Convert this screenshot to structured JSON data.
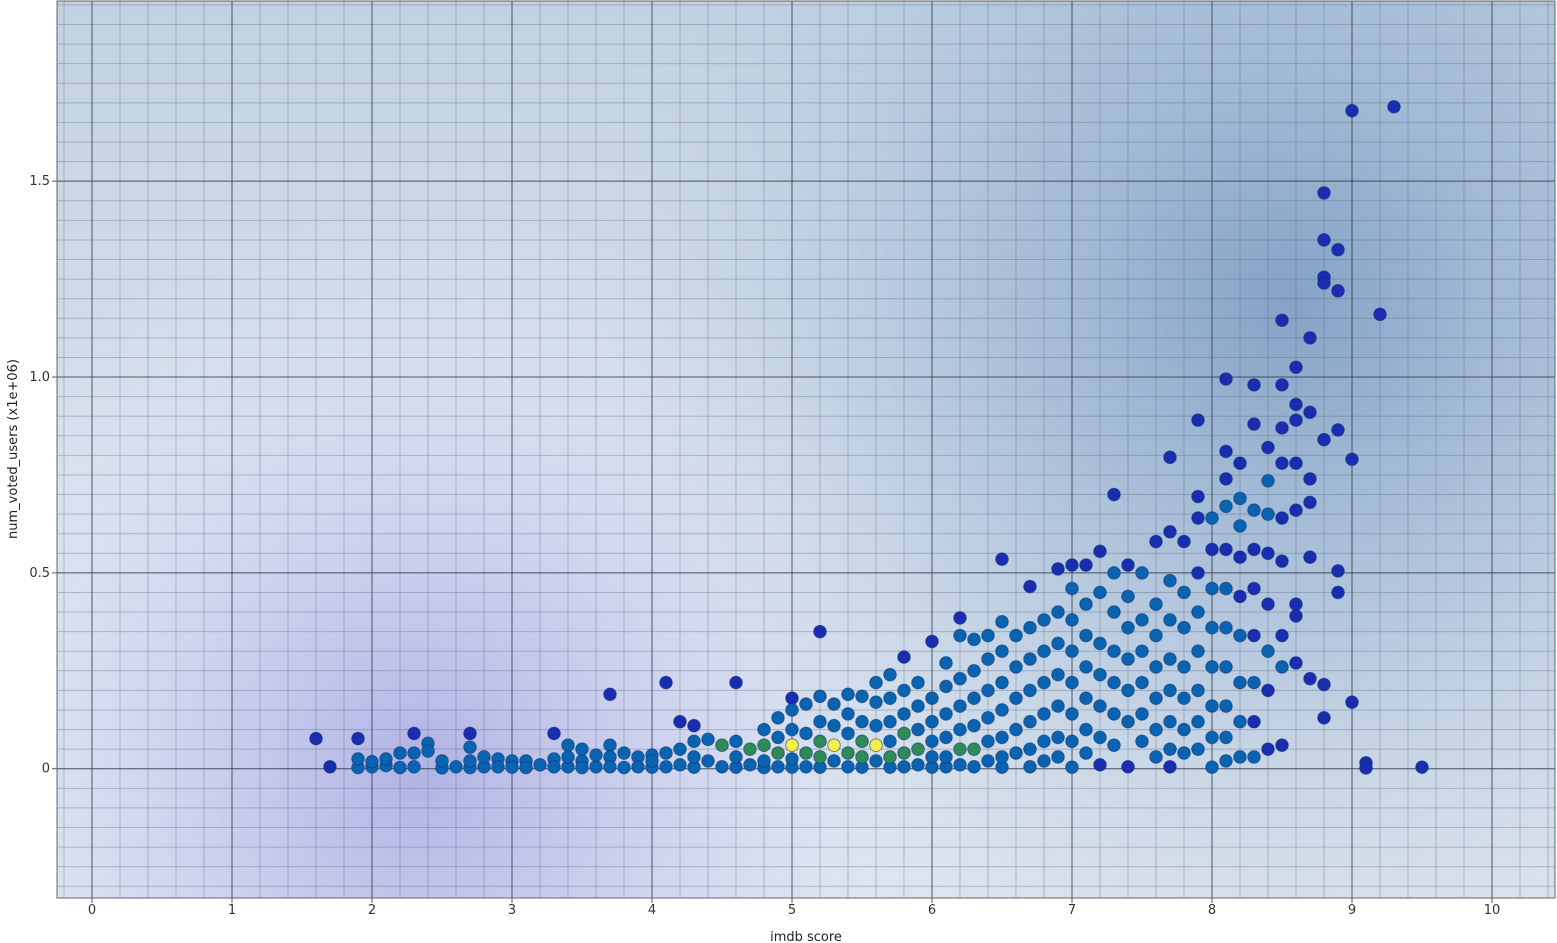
{
  "chart_data": {
    "type": "scatter",
    "title": "",
    "xlabel": "imdb score",
    "ylabel": "num_voted_users (x1e+06)",
    "xlim": [
      -0.25,
      10.45
    ],
    "ylim": [
      -0.33,
      1.96
    ],
    "x_ticks": [
      0,
      1,
      2,
      3,
      4,
      5,
      6,
      7,
      8,
      9,
      10
    ],
    "y_ticks": [
      0,
      0.5,
      1.0,
      1.5
    ],
    "x_tick_labels": [
      "0",
      "1",
      "2",
      "3",
      "4",
      "5",
      "6",
      "7",
      "8",
      "9",
      "10"
    ],
    "y_tick_labels": [
      "0",
      "0.5",
      "1.0",
      "1.5"
    ],
    "grid": true,
    "legend": "none",
    "colors": {
      "plot_background": "#c4d4e4",
      "density_high": "#8aa8c8",
      "density_low": "#b4b4e6",
      "point_low_density": "#1a2db0",
      "point_mid_density": "#0a63b0",
      "point_high_density": "#2e8a57",
      "point_peak_density": "#f4f04a"
    },
    "points": [
      [
        1.6,
        0.077
      ],
      [
        1.7,
        0.005
      ],
      [
        1.9,
        0.077
      ],
      [
        1.9,
        0.025
      ],
      [
        1.9,
        0.003
      ],
      [
        2.0,
        0.018
      ],
      [
        2.0,
        0.005
      ],
      [
        2.1,
        0.025
      ],
      [
        2.1,
        0.008
      ],
      [
        2.2,
        0.04
      ],
      [
        2.2,
        0.003
      ],
      [
        2.3,
        0.09
      ],
      [
        2.3,
        0.04
      ],
      [
        2.3,
        0.005
      ],
      [
        2.4,
        0.065
      ],
      [
        2.4,
        0.045
      ],
      [
        2.5,
        0.02
      ],
      [
        2.5,
        0.002
      ],
      [
        2.6,
        0.005
      ],
      [
        2.7,
        0.09
      ],
      [
        2.7,
        0.055
      ],
      [
        2.7,
        0.02
      ],
      [
        2.7,
        0.003
      ],
      [
        2.8,
        0.03
      ],
      [
        2.8,
        0.005
      ],
      [
        2.9,
        0.025
      ],
      [
        2.9,
        0.005
      ],
      [
        3.0,
        0.02
      ],
      [
        3.0,
        0.004
      ],
      [
        3.1,
        0.02
      ],
      [
        3.1,
        0.003
      ],
      [
        3.2,
        0.01
      ],
      [
        3.3,
        0.09
      ],
      [
        3.3,
        0.025
      ],
      [
        3.3,
        0.005
      ],
      [
        3.4,
        0.06
      ],
      [
        3.4,
        0.03
      ],
      [
        3.4,
        0.005
      ],
      [
        3.5,
        0.05
      ],
      [
        3.5,
        0.02
      ],
      [
        3.5,
        0.003
      ],
      [
        3.6,
        0.035
      ],
      [
        3.6,
        0.005
      ],
      [
        3.7,
        0.19
      ],
      [
        3.7,
        0.06
      ],
      [
        3.7,
        0.03
      ],
      [
        3.7,
        0.005
      ],
      [
        3.8,
        0.04
      ],
      [
        3.8,
        0.003
      ],
      [
        3.9,
        0.03
      ],
      [
        3.9,
        0.005
      ],
      [
        4.0,
        0.035
      ],
      [
        4.0,
        0.02
      ],
      [
        4.0,
        0.004
      ],
      [
        4.1,
        0.22
      ],
      [
        4.1,
        0.04
      ],
      [
        4.1,
        0.005
      ],
      [
        4.2,
        0.12
      ],
      [
        4.2,
        0.05
      ],
      [
        4.2,
        0.01
      ],
      [
        4.3,
        0.11
      ],
      [
        4.3,
        0.07
      ],
      [
        4.3,
        0.03
      ],
      [
        4.3,
        0.004
      ],
      [
        4.4,
        0.075
      ],
      [
        4.4,
        0.02
      ],
      [
        4.5,
        0.06
      ],
      [
        4.5,
        0.005
      ],
      [
        4.6,
        0.22
      ],
      [
        4.6,
        0.07
      ],
      [
        4.6,
        0.03
      ],
      [
        4.6,
        0.004
      ],
      [
        4.7,
        0.05
      ],
      [
        4.7,
        0.01
      ],
      [
        4.8,
        0.1
      ],
      [
        4.8,
        0.06
      ],
      [
        4.8,
        0.02
      ],
      [
        4.8,
        0.003
      ],
      [
        4.9,
        0.13
      ],
      [
        4.9,
        0.08
      ],
      [
        4.9,
        0.04
      ],
      [
        4.9,
        0.005
      ],
      [
        5.0,
        0.18
      ],
      [
        5.0,
        0.15
      ],
      [
        5.0,
        0.1
      ],
      [
        5.0,
        0.06
      ],
      [
        5.0,
        0.025
      ],
      [
        5.0,
        0.004
      ],
      [
        5.1,
        0.165
      ],
      [
        5.1,
        0.09
      ],
      [
        5.1,
        0.04
      ],
      [
        5.1,
        0.005
      ],
      [
        5.2,
        0.35
      ],
      [
        5.2,
        0.185
      ],
      [
        5.2,
        0.12
      ],
      [
        5.2,
        0.07
      ],
      [
        5.2,
        0.03
      ],
      [
        5.2,
        0.004
      ],
      [
        5.3,
        0.165
      ],
      [
        5.3,
        0.11
      ],
      [
        5.3,
        0.06
      ],
      [
        5.3,
        0.02
      ],
      [
        5.4,
        0.19
      ],
      [
        5.4,
        0.14
      ],
      [
        5.4,
        0.09
      ],
      [
        5.4,
        0.04
      ],
      [
        5.4,
        0.005
      ],
      [
        5.5,
        0.185
      ],
      [
        5.5,
        0.12
      ],
      [
        5.5,
        0.07
      ],
      [
        5.5,
        0.03
      ],
      [
        5.5,
        0.004
      ],
      [
        5.6,
        0.22
      ],
      [
        5.6,
        0.17
      ],
      [
        5.6,
        0.11
      ],
      [
        5.6,
        0.06
      ],
      [
        5.6,
        0.02
      ],
      [
        5.7,
        0.24
      ],
      [
        5.7,
        0.18
      ],
      [
        5.7,
        0.12
      ],
      [
        5.7,
        0.07
      ],
      [
        5.7,
        0.03
      ],
      [
        5.7,
        0.004
      ],
      [
        5.8,
        0.285
      ],
      [
        5.8,
        0.2
      ],
      [
        5.8,
        0.14
      ],
      [
        5.8,
        0.09
      ],
      [
        5.8,
        0.04
      ],
      [
        5.8,
        0.005
      ],
      [
        5.9,
        0.22
      ],
      [
        5.9,
        0.16
      ],
      [
        5.9,
        0.1
      ],
      [
        5.9,
        0.05
      ],
      [
        5.9,
        0.01
      ],
      [
        6.0,
        0.325
      ],
      [
        6.0,
        0.18
      ],
      [
        6.0,
        0.12
      ],
      [
        6.0,
        0.07
      ],
      [
        6.0,
        0.03
      ],
      [
        6.0,
        0.004
      ],
      [
        6.1,
        0.27
      ],
      [
        6.1,
        0.21
      ],
      [
        6.1,
        0.14
      ],
      [
        6.1,
        0.08
      ],
      [
        6.1,
        0.03
      ],
      [
        6.1,
        0.005
      ],
      [
        6.2,
        0.385
      ],
      [
        6.2,
        0.34
      ],
      [
        6.2,
        0.23
      ],
      [
        6.2,
        0.16
      ],
      [
        6.2,
        0.1
      ],
      [
        6.2,
        0.05
      ],
      [
        6.2,
        0.01
      ],
      [
        6.3,
        0.33
      ],
      [
        6.3,
        0.25
      ],
      [
        6.3,
        0.18
      ],
      [
        6.3,
        0.11
      ],
      [
        6.3,
        0.05
      ],
      [
        6.3,
        0.005
      ],
      [
        6.4,
        0.34
      ],
      [
        6.4,
        0.28
      ],
      [
        6.4,
        0.2
      ],
      [
        6.4,
        0.13
      ],
      [
        6.4,
        0.07
      ],
      [
        6.4,
        0.02
      ],
      [
        6.5,
        0.535
      ],
      [
        6.5,
        0.375
      ],
      [
        6.5,
        0.3
      ],
      [
        6.5,
        0.22
      ],
      [
        6.5,
        0.15
      ],
      [
        6.5,
        0.08
      ],
      [
        6.5,
        0.03
      ],
      [
        6.5,
        0.004
      ],
      [
        6.6,
        0.34
      ],
      [
        6.6,
        0.26
      ],
      [
        6.6,
        0.18
      ],
      [
        6.6,
        0.1
      ],
      [
        6.6,
        0.04
      ],
      [
        6.7,
        0.465
      ],
      [
        6.7,
        0.36
      ],
      [
        6.7,
        0.28
      ],
      [
        6.7,
        0.2
      ],
      [
        6.7,
        0.12
      ],
      [
        6.7,
        0.05
      ],
      [
        6.7,
        0.005
      ],
      [
        6.8,
        0.38
      ],
      [
        6.8,
        0.3
      ],
      [
        6.8,
        0.22
      ],
      [
        6.8,
        0.14
      ],
      [
        6.8,
        0.07
      ],
      [
        6.8,
        0.02
      ],
      [
        6.9,
        0.51
      ],
      [
        6.9,
        0.4
      ],
      [
        6.9,
        0.32
      ],
      [
        6.9,
        0.24
      ],
      [
        6.9,
        0.16
      ],
      [
        6.9,
        0.08
      ],
      [
        6.9,
        0.03
      ],
      [
        7.0,
        0.52
      ],
      [
        7.0,
        0.46
      ],
      [
        7.0,
        0.38
      ],
      [
        7.0,
        0.3
      ],
      [
        7.0,
        0.22
      ],
      [
        7.0,
        0.14
      ],
      [
        7.0,
        0.07
      ],
      [
        7.0,
        0.004
      ],
      [
        7.1,
        0.52
      ],
      [
        7.1,
        0.42
      ],
      [
        7.1,
        0.34
      ],
      [
        7.1,
        0.26
      ],
      [
        7.1,
        0.18
      ],
      [
        7.1,
        0.1
      ],
      [
        7.1,
        0.04
      ],
      [
        7.2,
        0.555
      ],
      [
        7.2,
        0.45
      ],
      [
        7.2,
        0.32
      ],
      [
        7.2,
        0.24
      ],
      [
        7.2,
        0.16
      ],
      [
        7.2,
        0.08
      ],
      [
        7.2,
        0.01
      ],
      [
        7.3,
        0.7
      ],
      [
        7.3,
        0.5
      ],
      [
        7.3,
        0.4
      ],
      [
        7.3,
        0.3
      ],
      [
        7.3,
        0.22
      ],
      [
        7.3,
        0.14
      ],
      [
        7.3,
        0.06
      ],
      [
        7.4,
        0.52
      ],
      [
        7.4,
        0.44
      ],
      [
        7.4,
        0.36
      ],
      [
        7.4,
        0.28
      ],
      [
        7.4,
        0.2
      ],
      [
        7.4,
        0.12
      ],
      [
        7.4,
        0.005
      ],
      [
        7.5,
        0.5
      ],
      [
        7.5,
        0.38
      ],
      [
        7.5,
        0.3
      ],
      [
        7.5,
        0.22
      ],
      [
        7.5,
        0.14
      ],
      [
        7.5,
        0.07
      ],
      [
        7.6,
        0.58
      ],
      [
        7.6,
        0.42
      ],
      [
        7.6,
        0.34
      ],
      [
        7.6,
        0.26
      ],
      [
        7.6,
        0.18
      ],
      [
        7.6,
        0.1
      ],
      [
        7.6,
        0.03
      ],
      [
        7.7,
        0.795
      ],
      [
        7.7,
        0.605
      ],
      [
        7.7,
        0.48
      ],
      [
        7.7,
        0.38
      ],
      [
        7.7,
        0.28
      ],
      [
        7.7,
        0.2
      ],
      [
        7.7,
        0.12
      ],
      [
        7.7,
        0.05
      ],
      [
        7.7,
        0.005
      ],
      [
        7.8,
        0.58
      ],
      [
        7.8,
        0.45
      ],
      [
        7.8,
        0.36
      ],
      [
        7.8,
        0.26
      ],
      [
        7.8,
        0.18
      ],
      [
        7.8,
        0.1
      ],
      [
        7.8,
        0.04
      ],
      [
        7.9,
        0.89
      ],
      [
        7.9,
        0.695
      ],
      [
        7.9,
        0.64
      ],
      [
        7.9,
        0.5
      ],
      [
        7.9,
        0.4
      ],
      [
        7.9,
        0.3
      ],
      [
        7.9,
        0.2
      ],
      [
        7.9,
        0.12
      ],
      [
        7.9,
        0.05
      ],
      [
        8.0,
        0.64
      ],
      [
        8.0,
        0.56
      ],
      [
        8.0,
        0.46
      ],
      [
        8.0,
        0.36
      ],
      [
        8.0,
        0.26
      ],
      [
        8.0,
        0.16
      ],
      [
        8.0,
        0.08
      ],
      [
        8.0,
        0.004
      ],
      [
        8.1,
        0.995
      ],
      [
        8.1,
        0.81
      ],
      [
        8.1,
        0.74
      ],
      [
        8.1,
        0.67
      ],
      [
        8.1,
        0.56
      ],
      [
        8.1,
        0.46
      ],
      [
        8.1,
        0.36
      ],
      [
        8.1,
        0.26
      ],
      [
        8.1,
        0.16
      ],
      [
        8.1,
        0.08
      ],
      [
        8.1,
        0.02
      ],
      [
        8.2,
        0.78
      ],
      [
        8.2,
        0.69
      ],
      [
        8.2,
        0.62
      ],
      [
        8.2,
        0.54
      ],
      [
        8.2,
        0.44
      ],
      [
        8.2,
        0.34
      ],
      [
        8.2,
        0.22
      ],
      [
        8.2,
        0.12
      ],
      [
        8.2,
        0.03
      ],
      [
        8.3,
        0.98
      ],
      [
        8.3,
        0.88
      ],
      [
        8.3,
        0.66
      ],
      [
        8.3,
        0.56
      ],
      [
        8.3,
        0.46
      ],
      [
        8.3,
        0.34
      ],
      [
        8.3,
        0.22
      ],
      [
        8.3,
        0.12
      ],
      [
        8.3,
        0.03
      ],
      [
        8.4,
        0.82
      ],
      [
        8.4,
        0.735
      ],
      [
        8.4,
        0.65
      ],
      [
        8.4,
        0.55
      ],
      [
        8.4,
        0.42
      ],
      [
        8.4,
        0.3
      ],
      [
        8.4,
        0.2
      ],
      [
        8.4,
        0.05
      ],
      [
        8.5,
        0.98
      ],
      [
        8.5,
        1.145
      ],
      [
        8.5,
        0.87
      ],
      [
        8.5,
        0.78
      ],
      [
        8.5,
        0.64
      ],
      [
        8.5,
        0.53
      ],
      [
        8.5,
        0.34
      ],
      [
        8.5,
        0.26
      ],
      [
        8.5,
        0.06
      ],
      [
        8.6,
        1.025
      ],
      [
        8.6,
        0.93
      ],
      [
        8.6,
        0.89
      ],
      [
        8.6,
        0.78
      ],
      [
        8.6,
        0.66
      ],
      [
        8.6,
        0.42
      ],
      [
        8.6,
        0.39
      ],
      [
        8.6,
        0.27
      ],
      [
        8.7,
        1.1
      ],
      [
        8.7,
        0.91
      ],
      [
        8.7,
        0.74
      ],
      [
        8.7,
        0.68
      ],
      [
        8.7,
        0.54
      ],
      [
        8.7,
        0.23
      ],
      [
        8.8,
        1.47
      ],
      [
        8.8,
        1.35
      ],
      [
        8.8,
        1.255
      ],
      [
        8.8,
        1.24
      ],
      [
        8.8,
        0.84
      ],
      [
        8.8,
        0.215
      ],
      [
        8.8,
        0.13
      ],
      [
        8.9,
        1.325
      ],
      [
        8.9,
        1.22
      ],
      [
        8.9,
        0.865
      ],
      [
        8.9,
        0.505
      ],
      [
        8.9,
        0.45
      ],
      [
        9.0,
        1.68
      ],
      [
        9.0,
        0.79
      ],
      [
        9.0,
        0.17
      ],
      [
        9.1,
        0.015
      ],
      [
        9.1,
        0.002
      ],
      [
        9.2,
        1.16
      ],
      [
        9.3,
        1.69
      ],
      [
        9.5,
        0.004
      ]
    ]
  }
}
